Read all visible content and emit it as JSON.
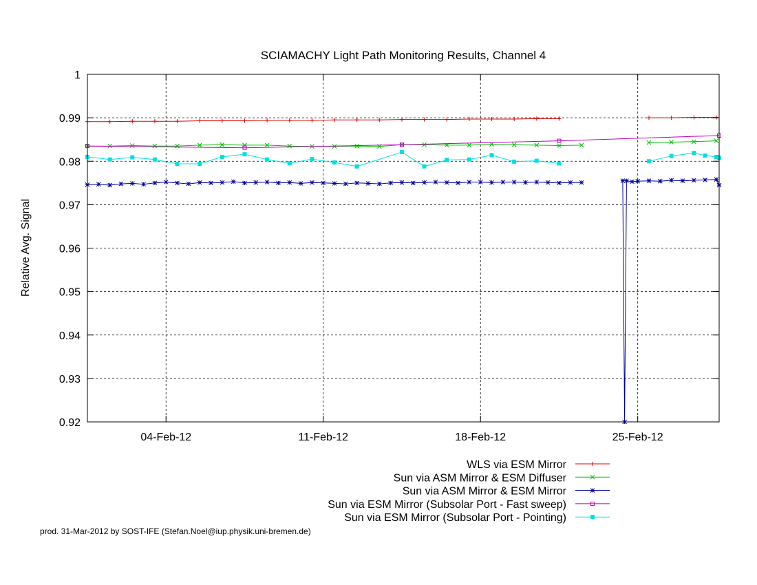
{
  "chart_data": {
    "type": "line",
    "title": "SCIAMACHY Light Path Monitoring Results, Channel 4",
    "xlabel": "",
    "ylabel": "Relative Avg. Signal",
    "ylim": [
      0.92,
      1.0
    ],
    "xlim": [
      "2012-01-31T12:00",
      "2012-02-28T15:00"
    ],
    "x_ticks": [
      {
        "label": "04-Feb-12",
        "date": "2012-02-04"
      },
      {
        "label": "11-Feb-12",
        "date": "2012-02-11"
      },
      {
        "label": "18-Feb-12",
        "date": "2012-02-18"
      },
      {
        "label": "25-Feb-12",
        "date": "2012-02-25"
      }
    ],
    "y_ticks": [
      "0.92",
      "0.93",
      "0.94",
      "0.95",
      "0.96",
      "0.97",
      "0.98",
      "0.99",
      "1"
    ],
    "grid": true,
    "legend_position": "below-right",
    "series": [
      {
        "name": "WLS via ESM Mirror",
        "color": "#e00000",
        "marker": "plus",
        "points": [
          [
            "2012-01-31T12:00",
            0.9891
          ],
          [
            "2012-02-01T12:00",
            0.9891
          ],
          [
            "2012-02-02T12:00",
            0.9892
          ],
          [
            "2012-02-03T12:00",
            0.9892
          ],
          [
            "2012-02-04T12:00",
            0.9892
          ],
          [
            "2012-02-05T12:00",
            0.9893
          ],
          [
            "2012-02-06T12:00",
            0.9893
          ],
          [
            "2012-02-07T12:00",
            0.9893
          ],
          [
            "2012-02-08T12:00",
            0.9894
          ],
          [
            "2012-02-09T12:00",
            0.9894
          ],
          [
            "2012-02-10T12:00",
            0.9894
          ],
          [
            "2012-02-11T12:00",
            0.9895
          ],
          [
            "2012-02-12T12:00",
            0.9895
          ],
          [
            "2012-02-13T12:00",
            0.9895
          ],
          [
            "2012-02-14T12:00",
            0.9896
          ],
          [
            "2012-02-15T12:00",
            0.9896
          ],
          [
            "2012-02-16T12:00",
            0.9896
          ],
          [
            "2012-02-17T12:00",
            0.9897
          ],
          [
            "2012-02-18T12:00",
            0.9897
          ],
          [
            "2012-02-19T12:00",
            0.9897
          ],
          [
            "2012-02-20T12:00",
            0.9898
          ],
          [
            "2012-02-21T12:00",
            0.9898
          ],
          null,
          [
            "2012-02-25T12:00",
            0.99
          ],
          [
            "2012-02-26T12:00",
            0.99
          ],
          [
            "2012-02-27T12:00",
            0.9901
          ],
          [
            "2012-02-28T12:00",
            0.9901
          ]
        ]
      },
      {
        "name": "Sun via ASM Mirror & ESM Diffuser",
        "color": "#00c000",
        "marker": "cross",
        "points": [
          [
            "2012-01-31T12:00",
            0.9835
          ],
          [
            "2012-02-01T12:00",
            0.9835
          ],
          [
            "2012-02-02T12:00",
            0.9836
          ],
          [
            "2012-02-03T12:00",
            0.9835
          ],
          [
            "2012-02-04T12:00",
            0.9835
          ],
          [
            "2012-02-05T12:00",
            0.9837
          ],
          [
            "2012-02-06T12:00",
            0.9838
          ],
          [
            "2012-02-07T12:00",
            0.9837
          ],
          [
            "2012-02-08T12:00",
            0.9837
          ],
          [
            "2012-02-09T12:00",
            0.9835
          ],
          [
            "2012-02-10T12:00",
            0.9834
          ],
          [
            "2012-02-11T12:00",
            0.9834
          ],
          [
            "2012-02-12T12:00",
            0.9835
          ],
          [
            "2012-02-13T12:00",
            0.9834
          ],
          [
            "2012-02-14T12:00",
            0.9838
          ],
          [
            "2012-02-15T12:00",
            0.9838
          ],
          [
            "2012-02-16T12:00",
            0.9837
          ],
          [
            "2012-02-17T12:00",
            0.9837
          ],
          [
            "2012-02-18T12:00",
            0.9839
          ],
          [
            "2012-02-19T12:00",
            0.9838
          ],
          [
            "2012-02-20T12:00",
            0.9837
          ],
          [
            "2012-02-21T12:00",
            0.9836
          ],
          [
            "2012-02-22T12:00",
            0.9837
          ],
          null,
          [
            "2012-02-25T12:00",
            0.9843
          ],
          [
            "2012-02-26T12:00",
            0.9844
          ],
          [
            "2012-02-27T12:00",
            0.9845
          ],
          [
            "2012-02-28T12:00",
            0.9847
          ]
        ]
      },
      {
        "name": "Sun via ASM Mirror & ESM Mirror",
        "color": "#0000a0",
        "marker": "star",
        "points": [
          [
            "2012-01-31T12:00",
            0.9746
          ],
          [
            "2012-02-01T00:00",
            0.9747
          ],
          [
            "2012-02-01T12:00",
            0.9745
          ],
          [
            "2012-02-02T00:00",
            0.9748
          ],
          [
            "2012-02-02T12:00",
            0.9749
          ],
          [
            "2012-02-03T00:00",
            0.9747
          ],
          [
            "2012-02-03T12:00",
            0.975
          ],
          [
            "2012-02-04T00:00",
            0.9752
          ],
          [
            "2012-02-04T12:00",
            0.975
          ],
          [
            "2012-02-05T00:00",
            0.9748
          ],
          [
            "2012-02-05T12:00",
            0.9751
          ],
          [
            "2012-02-06T00:00",
            0.975
          ],
          [
            "2012-02-06T12:00",
            0.9751
          ],
          [
            "2012-02-07T00:00",
            0.9753
          ],
          [
            "2012-02-07T12:00",
            0.975
          ],
          [
            "2012-02-08T00:00",
            0.9751
          ],
          [
            "2012-02-08T12:00",
            0.9752
          ],
          [
            "2012-02-09T00:00",
            0.975
          ],
          [
            "2012-02-09T12:00",
            0.9751
          ],
          [
            "2012-02-10T00:00",
            0.9749
          ],
          [
            "2012-02-10T12:00",
            0.9751
          ],
          [
            "2012-02-11T00:00",
            0.975
          ],
          [
            "2012-02-11T12:00",
            0.9749
          ],
          [
            "2012-02-12T00:00",
            0.9748
          ],
          [
            "2012-02-12T12:00",
            0.975
          ],
          [
            "2012-02-13T00:00",
            0.9749
          ],
          [
            "2012-02-13T12:00",
            0.9748
          ],
          [
            "2012-02-14T00:00",
            0.975
          ],
          [
            "2012-02-14T12:00",
            0.9751
          ],
          [
            "2012-02-15T00:00",
            0.975
          ],
          [
            "2012-02-15T12:00",
            0.9751
          ],
          [
            "2012-02-16T00:00",
            0.9752
          ],
          [
            "2012-02-16T12:00",
            0.9751
          ],
          [
            "2012-02-17T00:00",
            0.975
          ],
          [
            "2012-02-17T12:00",
            0.9752
          ],
          [
            "2012-02-18T00:00",
            0.9752
          ],
          [
            "2012-02-18T12:00",
            0.9751
          ],
          [
            "2012-02-19T00:00",
            0.9752
          ],
          [
            "2012-02-19T12:00",
            0.9752
          ],
          [
            "2012-02-20T00:00",
            0.9751
          ],
          [
            "2012-02-20T12:00",
            0.9752
          ],
          [
            "2012-02-21T00:00",
            0.9751
          ],
          [
            "2012-02-21T12:00",
            0.975
          ],
          [
            "2012-02-22T00:00",
            0.9751
          ],
          [
            "2012-02-22T12:00",
            0.9751
          ],
          null,
          [
            "2012-02-24T08:00",
            0.9755
          ],
          [
            "2012-02-24T10:00",
            0.92
          ],
          [
            "2012-02-24T12:00",
            0.9755
          ],
          [
            "2012-02-24T18:00",
            0.9753
          ],
          [
            "2012-02-25T00:00",
            0.9754
          ],
          [
            "2012-02-25T12:00",
            0.9755
          ],
          [
            "2012-02-26T00:00",
            0.9754
          ],
          [
            "2012-02-26T12:00",
            0.9756
          ],
          [
            "2012-02-27T00:00",
            0.9755
          ],
          [
            "2012-02-27T12:00",
            0.9756
          ],
          [
            "2012-02-28T00:00",
            0.9757
          ],
          [
            "2012-02-28T12:00",
            0.9758
          ],
          [
            "2012-02-28T15:00",
            0.9745
          ]
        ]
      },
      {
        "name": "Sun via ESM Mirror (Subsolar Port - Fast sweep)",
        "color": "#c000c0",
        "marker": "square-open",
        "points": [
          [
            "2012-01-31T12:00",
            0.9835
          ],
          [
            "2012-02-07T12:00",
            0.9831
          ],
          [
            "2012-02-14T12:00",
            0.9838
          ],
          [
            "2012-02-21T12:00",
            0.9847
          ],
          [
            "2012-02-28T15:00",
            0.9859
          ]
        ]
      },
      {
        "name": "Sun via ESM Mirror (Subsolar Port - Pointing)",
        "color": "#00e0e0",
        "marker": "square-filled",
        "points": [
          [
            "2012-01-31T12:00",
            0.981
          ],
          [
            "2012-02-01T12:00",
            0.9804
          ],
          [
            "2012-02-02T12:00",
            0.9809
          ],
          [
            "2012-02-03T12:00",
            0.9804
          ],
          [
            "2012-02-04T12:00",
            0.9794
          ],
          [
            "2012-02-05T12:00",
            0.9794
          ],
          [
            "2012-02-06T12:00",
            0.981
          ],
          [
            "2012-02-07T12:00",
            0.9816
          ],
          [
            "2012-02-08T12:00",
            0.9804
          ],
          [
            "2012-02-09T12:00",
            0.9795
          ],
          [
            "2012-02-10T12:00",
            0.9805
          ],
          [
            "2012-02-11T12:00",
            0.9797
          ],
          [
            "2012-02-12T12:00",
            0.9788
          ],
          [
            "2012-02-14T12:00",
            0.9821
          ],
          [
            "2012-02-15T12:00",
            0.9788
          ],
          [
            "2012-02-16T12:00",
            0.9803
          ],
          [
            "2012-02-17T12:00",
            0.9804
          ],
          [
            "2012-02-18T12:00",
            0.9814
          ],
          [
            "2012-02-19T12:00",
            0.9799
          ],
          [
            "2012-02-20T12:00",
            0.9801
          ],
          [
            "2012-02-21T12:00",
            0.9795
          ],
          null,
          [
            "2012-02-25T12:00",
            0.98
          ],
          [
            "2012-02-26T12:00",
            0.9812
          ],
          [
            "2012-02-27T12:00",
            0.9819
          ],
          [
            "2012-02-28T00:00",
            0.9813
          ],
          [
            "2012-02-28T12:00",
            0.981
          ],
          [
            "2012-02-28T15:00",
            0.9808
          ]
        ]
      }
    ]
  },
  "footer": {
    "production_note": "prod. 31-Mar-2012 by SOST-IFE (Stefan.Noel@iup.physik.uni-bremen.de)"
  }
}
